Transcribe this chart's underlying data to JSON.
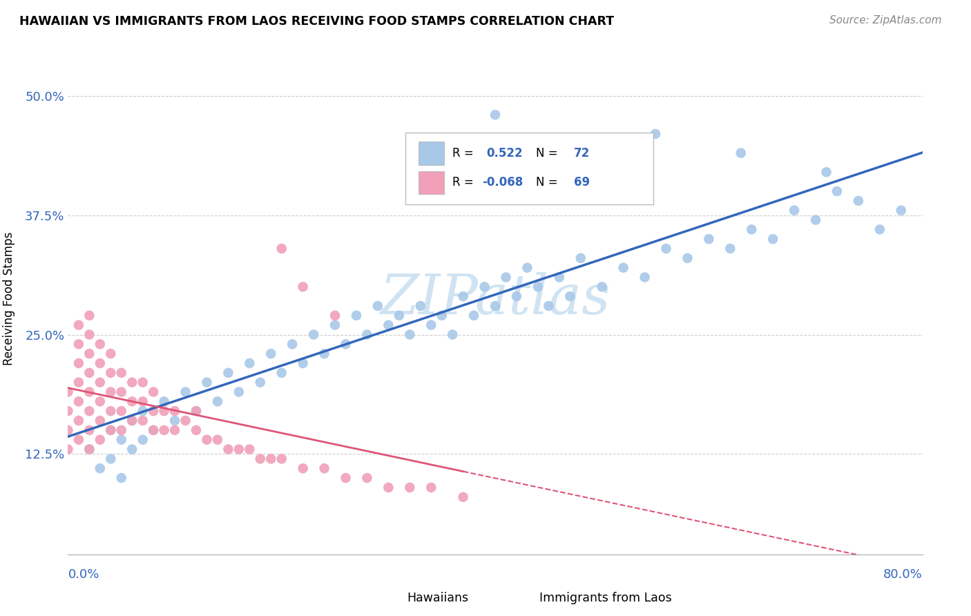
{
  "title": "HAWAIIAN VS IMMIGRANTS FROM LAOS RECEIVING FOOD STAMPS CORRELATION CHART",
  "source": "Source: ZipAtlas.com",
  "ylabel": "Receiving Food Stamps",
  "yticks": [
    0.125,
    0.25,
    0.375,
    0.5
  ],
  "ytick_labels": [
    "12.5%",
    "25.0%",
    "37.5%",
    "50.0%"
  ],
  "xlim": [
    0.0,
    0.8
  ],
  "ylim": [
    0.02,
    0.555
  ],
  "color_hawaiian": "#A8C8E8",
  "color_laos": "#F0A0B8",
  "color_hawaiian_line": "#3366BB",
  "color_laos_line": "#DD5577",
  "watermark_color": "#C8DFF0",
  "legend_label_hawaiian": "Hawaiians",
  "legend_label_laos": "Immigrants from Laos",
  "hawaiian_x": [
    0.02,
    0.03,
    0.04,
    0.04,
    0.05,
    0.05,
    0.06,
    0.06,
    0.07,
    0.07,
    0.08,
    0.09,
    0.1,
    0.11,
    0.12,
    0.13,
    0.14,
    0.15,
    0.16,
    0.17,
    0.18,
    0.19,
    0.2,
    0.21,
    0.22,
    0.23,
    0.24,
    0.25,
    0.26,
    0.27,
    0.28,
    0.29,
    0.3,
    0.31,
    0.32,
    0.33,
    0.34,
    0.35,
    0.36,
    0.37,
    0.38,
    0.39,
    0.4,
    0.41,
    0.42,
    0.43,
    0.44,
    0.45,
    0.46,
    0.47,
    0.48,
    0.5,
    0.52,
    0.54,
    0.56,
    0.58,
    0.6,
    0.62,
    0.64,
    0.66,
    0.68,
    0.7,
    0.72,
    0.38,
    0.4,
    0.35,
    0.55,
    0.63,
    0.71,
    0.74,
    0.76,
    0.78
  ],
  "hawaiian_y": [
    0.13,
    0.11,
    0.15,
    0.12,
    0.14,
    0.1,
    0.16,
    0.13,
    0.17,
    0.14,
    0.15,
    0.18,
    0.16,
    0.19,
    0.17,
    0.2,
    0.18,
    0.21,
    0.19,
    0.22,
    0.2,
    0.23,
    0.21,
    0.24,
    0.22,
    0.25,
    0.23,
    0.26,
    0.24,
    0.27,
    0.25,
    0.28,
    0.26,
    0.27,
    0.25,
    0.28,
    0.26,
    0.27,
    0.25,
    0.29,
    0.27,
    0.3,
    0.28,
    0.31,
    0.29,
    0.32,
    0.3,
    0.28,
    0.31,
    0.29,
    0.33,
    0.3,
    0.32,
    0.31,
    0.34,
    0.33,
    0.35,
    0.34,
    0.36,
    0.35,
    0.38,
    0.37,
    0.4,
    0.45,
    0.48,
    0.43,
    0.46,
    0.44,
    0.42,
    0.39,
    0.36,
    0.38
  ],
  "laos_x": [
    0.0,
    0.0,
    0.0,
    0.0,
    0.01,
    0.01,
    0.01,
    0.01,
    0.01,
    0.01,
    0.01,
    0.02,
    0.02,
    0.02,
    0.02,
    0.02,
    0.02,
    0.02,
    0.02,
    0.03,
    0.03,
    0.03,
    0.03,
    0.03,
    0.03,
    0.04,
    0.04,
    0.04,
    0.04,
    0.04,
    0.05,
    0.05,
    0.05,
    0.05,
    0.06,
    0.06,
    0.06,
    0.07,
    0.07,
    0.07,
    0.08,
    0.08,
    0.08,
    0.09,
    0.09,
    0.1,
    0.1,
    0.11,
    0.12,
    0.12,
    0.13,
    0.14,
    0.15,
    0.16,
    0.17,
    0.18,
    0.19,
    0.2,
    0.22,
    0.24,
    0.26,
    0.28,
    0.3,
    0.32,
    0.34,
    0.37,
    0.2,
    0.22,
    0.25
  ],
  "laos_y": [
    0.13,
    0.15,
    0.17,
    0.19,
    0.14,
    0.16,
    0.18,
    0.2,
    0.22,
    0.24,
    0.26,
    0.13,
    0.15,
    0.17,
    0.19,
    0.21,
    0.23,
    0.25,
    0.27,
    0.14,
    0.16,
    0.18,
    0.2,
    0.22,
    0.24,
    0.15,
    0.17,
    0.19,
    0.21,
    0.23,
    0.15,
    0.17,
    0.19,
    0.21,
    0.16,
    0.18,
    0.2,
    0.16,
    0.18,
    0.2,
    0.15,
    0.17,
    0.19,
    0.15,
    0.17,
    0.15,
    0.17,
    0.16,
    0.15,
    0.17,
    0.14,
    0.14,
    0.13,
    0.13,
    0.13,
    0.12,
    0.12,
    0.12,
    0.11,
    0.11,
    0.1,
    0.1,
    0.09,
    0.09,
    0.09,
    0.08,
    0.34,
    0.3,
    0.27
  ]
}
